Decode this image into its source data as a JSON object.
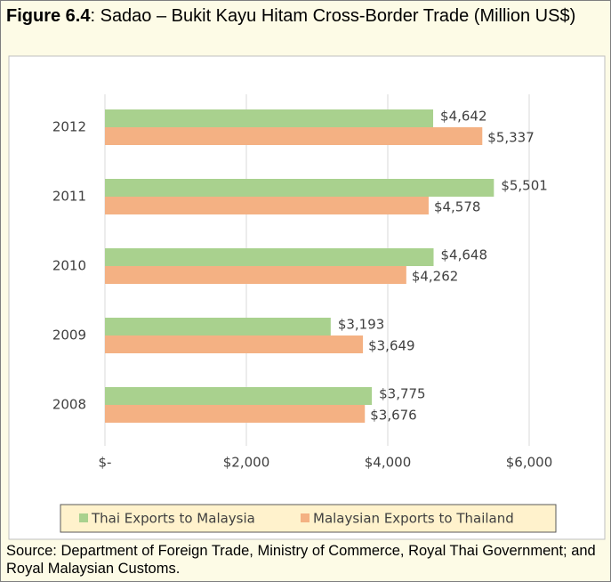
{
  "figure_label": "Figure 6.4",
  "title": ": Sadao – Bukit Kayu Hitam Cross-Border Trade (Million US$)",
  "source": "Source: Department of Foreign Trade, Ministry of Commerce, Royal Thai Government; and Royal Malaysian Customs.",
  "chart_data": {
    "type": "hbar",
    "categories": [
      "2008",
      "2009",
      "2010",
      "2011",
      "2012"
    ],
    "series": [
      {
        "name": "Thai Exports to Malaysia",
        "color": "#a9d18e",
        "values": [
          3775,
          3193,
          4648,
          5501,
          4642
        ],
        "value_labels": [
          "$3,775",
          "$3,193",
          "$4,648",
          "$5,501",
          "$4,642"
        ]
      },
      {
        "name": "Malaysian Exports to Thailand",
        "color": "#f4b183",
        "values": [
          3676,
          3649,
          4262,
          4578,
          5337
        ],
        "value_labels": [
          "$3,676",
          "$3,649",
          "$4,262",
          "$4,578",
          "$5,337"
        ]
      }
    ],
    "xlim": [
      0,
      6000
    ],
    "xticks": [
      {
        "value": 0,
        "label": "$-"
      },
      {
        "value": 2000,
        "label": "$2,000"
      },
      {
        "value": 4000,
        "label": "$4,000"
      },
      {
        "value": 6000,
        "label": "$6,000"
      }
    ],
    "grid": true,
    "legend": "bottom"
  }
}
